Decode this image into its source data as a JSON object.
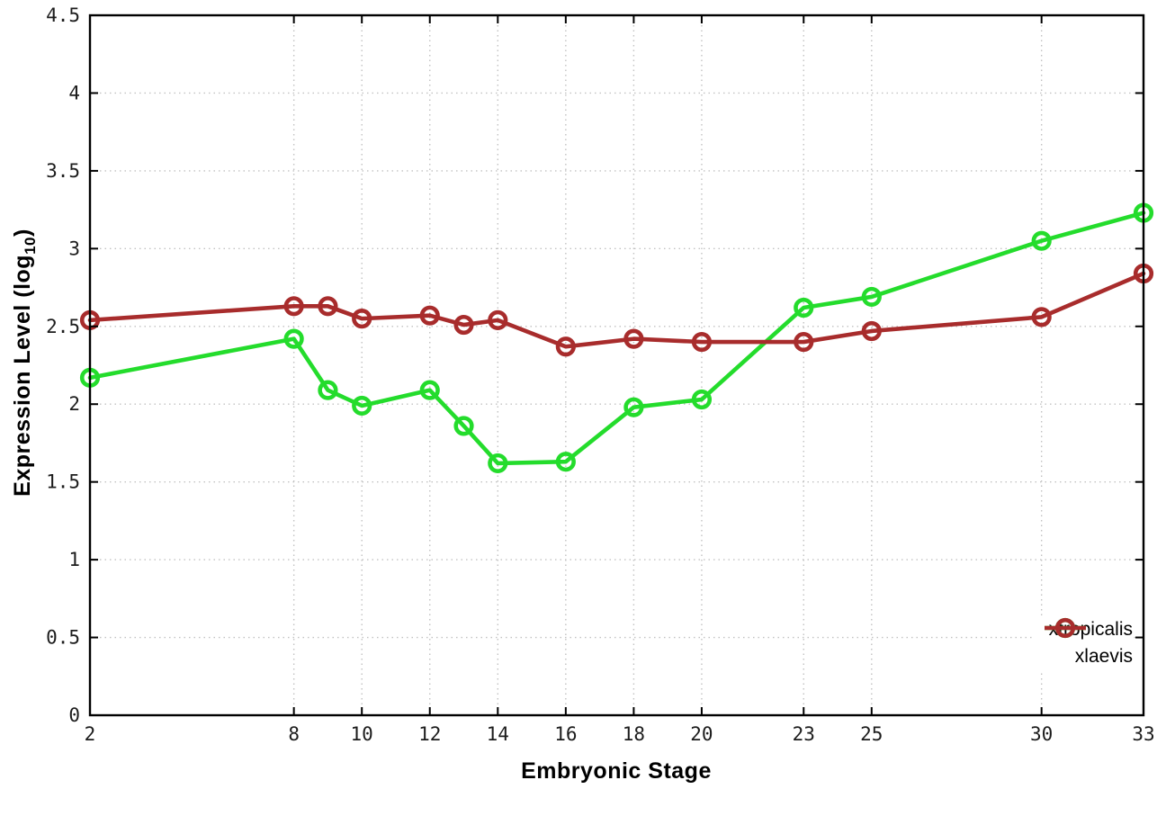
{
  "figure": {
    "background": "#ffffff",
    "axis_color": "#000000",
    "grid_color": "#c2c2c2",
    "tick_label_color": "#1c1c1c"
  },
  "chart_data": {
    "type": "line",
    "title": "",
    "xlabel": "Embryonic Stage",
    "ylabel_pre": "Expression Level (log",
    "ylabel_sub": "10",
    "ylabel_post": ")",
    "xlim": [
      2,
      33
    ],
    "ylim": [
      0,
      4.5
    ],
    "grid": true,
    "legend_position": "bottom-right",
    "x": [
      2,
      8,
      9,
      10,
      12,
      13,
      14,
      16,
      18,
      20,
      23,
      25,
      30,
      33
    ],
    "xticks": [
      2,
      8,
      10,
      12,
      14,
      16,
      18,
      20,
      23,
      25,
      30,
      33
    ],
    "xtick_labels": [
      "2",
      "8",
      "10",
      "12",
      "14",
      "16",
      "18",
      "20",
      "23",
      "25",
      "30",
      "33"
    ],
    "yticks": [
      0,
      0.5,
      1,
      1.5,
      2,
      2.5,
      3,
      3.5,
      4,
      4.5
    ],
    "ytick_labels": [
      "0",
      "0.5",
      "1",
      "1.5",
      "2",
      "2.5",
      "3",
      "3.5",
      "4",
      "4.5"
    ],
    "series": [
      {
        "name": "xtropicalis",
        "color": "#24dc2c",
        "marker": "open-circle",
        "values": [
          2.17,
          2.42,
          2.09,
          1.99,
          2.09,
          1.86,
          1.62,
          1.63,
          1.98,
          2.03,
          2.62,
          2.69,
          3.05,
          3.23
        ]
      },
      {
        "name": "xlaevis",
        "color": "#a82c2c",
        "marker": "open-circle",
        "values": [
          2.54,
          2.63,
          2.63,
          2.55,
          2.57,
          2.51,
          2.54,
          2.37,
          2.42,
          2.4,
          2.4,
          2.47,
          2.56,
          2.84
        ]
      }
    ]
  }
}
